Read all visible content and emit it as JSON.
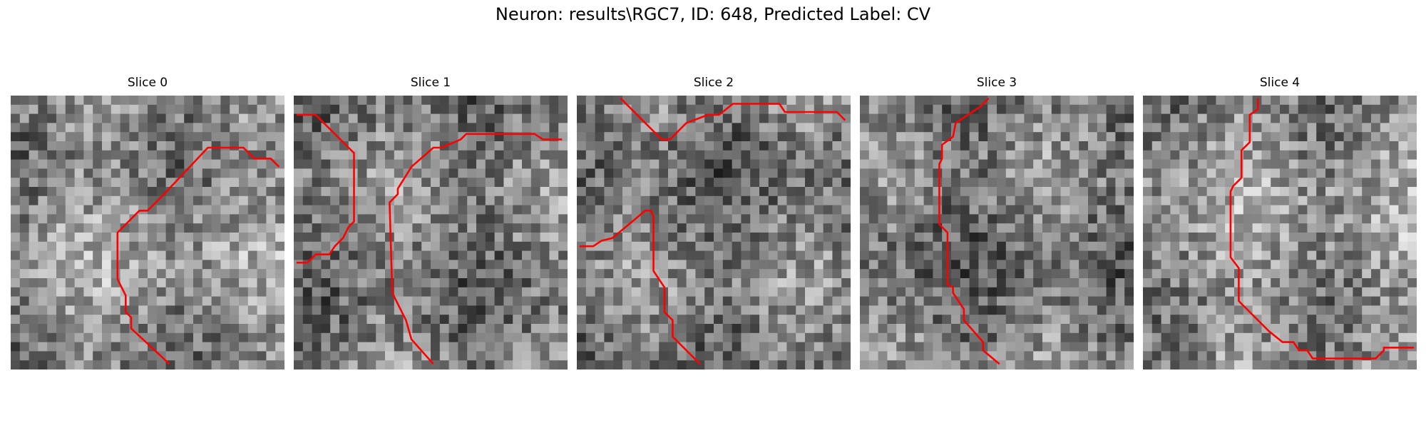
{
  "figure": {
    "title": "Neuron: results\\RGC7, ID: 648, Predicted Label: CV"
  },
  "colors": {
    "trace": "#ff0000",
    "background": "#ffffff"
  },
  "panels": [
    {
      "title": "Slice 0",
      "seed": 11,
      "mean": 140,
      "trace": [
        [
          0.58,
          0.98
        ],
        [
          0.44,
          0.85
        ],
        [
          0.44,
          0.81
        ],
        [
          0.42,
          0.79
        ],
        [
          0.42,
          0.73
        ],
        [
          0.39,
          0.67
        ],
        [
          0.39,
          0.5
        ],
        [
          0.47,
          0.42
        ],
        [
          0.5,
          0.42
        ],
        [
          0.56,
          0.36
        ],
        [
          0.72,
          0.19
        ],
        [
          0.85,
          0.19
        ],
        [
          0.89,
          0.23
        ],
        [
          0.95,
          0.23
        ],
        [
          0.98,
          0.26
        ]
      ]
    },
    {
      "title": "Slice 1",
      "seed": 23,
      "mean": 125,
      "trace": [
        [
          0.01,
          0.61
        ],
        [
          0.05,
          0.61
        ],
        [
          0.08,
          0.58
        ],
        [
          0.13,
          0.58
        ],
        [
          0.15,
          0.55
        ],
        [
          0.18,
          0.52
        ],
        [
          0.2,
          0.48
        ],
        [
          0.22,
          0.46
        ],
        [
          0.22,
          0.21
        ],
        [
          0.15,
          0.14
        ],
        [
          0.08,
          0.07
        ],
        [
          0.01,
          0.07
        ]
      ],
      "trace2": [
        [
          0.51,
          0.98
        ],
        [
          0.43,
          0.89
        ],
        [
          0.41,
          0.82
        ],
        [
          0.36,
          0.72
        ],
        [
          0.35,
          0.39
        ],
        [
          0.38,
          0.36
        ],
        [
          0.38,
          0.34
        ],
        [
          0.43,
          0.26
        ],
        [
          0.51,
          0.19
        ],
        [
          0.54,
          0.19
        ],
        [
          0.61,
          0.16
        ],
        [
          0.63,
          0.14
        ],
        [
          0.74,
          0.14
        ],
        [
          0.88,
          0.14
        ],
        [
          0.91,
          0.16
        ],
        [
          0.98,
          0.16
        ]
      ]
    },
    {
      "title": "Slice 2",
      "seed": 37,
      "mean": 120,
      "trace": [
        [
          0.16,
          0.01
        ],
        [
          0.25,
          0.1
        ],
        [
          0.31,
          0.16
        ],
        [
          0.34,
          0.16
        ],
        [
          0.4,
          0.1
        ],
        [
          0.48,
          0.07
        ],
        [
          0.52,
          0.07
        ],
        [
          0.57,
          0.03
        ],
        [
          0.74,
          0.03
        ],
        [
          0.76,
          0.06
        ],
        [
          0.95,
          0.06
        ],
        [
          0.98,
          0.09
        ]
      ],
      "trace2": [
        [
          0.01,
          0.55
        ],
        [
          0.06,
          0.55
        ],
        [
          0.09,
          0.53
        ],
        [
          0.13,
          0.52
        ],
        [
          0.19,
          0.47
        ],
        [
          0.25,
          0.42
        ],
        [
          0.27,
          0.42
        ],
        [
          0.28,
          0.44
        ],
        [
          0.28,
          0.64
        ],
        [
          0.32,
          0.7
        ],
        [
          0.32,
          0.79
        ],
        [
          0.35,
          0.82
        ],
        [
          0.35,
          0.88
        ],
        [
          0.45,
          0.98
        ]
      ]
    },
    {
      "title": "Slice 3",
      "seed": 51,
      "mean": 118,
      "trace": [
        [
          0.51,
          0.98
        ],
        [
          0.45,
          0.93
        ],
        [
          0.45,
          0.9
        ],
        [
          0.38,
          0.82
        ],
        [
          0.38,
          0.78
        ],
        [
          0.34,
          0.72
        ],
        [
          0.34,
          0.7
        ],
        [
          0.32,
          0.69
        ],
        [
          0.32,
          0.5
        ],
        [
          0.29,
          0.47
        ],
        [
          0.29,
          0.25
        ],
        [
          0.3,
          0.23
        ],
        [
          0.3,
          0.18
        ],
        [
          0.34,
          0.15
        ],
        [
          0.35,
          0.1
        ],
        [
          0.44,
          0.04
        ],
        [
          0.47,
          0.01
        ]
      ]
    },
    {
      "title": "Slice 4",
      "seed": 67,
      "mean": 145,
      "trace": [
        [
          0.42,
          0.01
        ],
        [
          0.42,
          0.05
        ],
        [
          0.39,
          0.07
        ],
        [
          0.39,
          0.17
        ],
        [
          0.36,
          0.2
        ],
        [
          0.36,
          0.3
        ],
        [
          0.33,
          0.33
        ],
        [
          0.32,
          0.35
        ],
        [
          0.32,
          0.59
        ],
        [
          0.35,
          0.63
        ],
        [
          0.35,
          0.75
        ],
        [
          0.46,
          0.86
        ],
        [
          0.51,
          0.9
        ],
        [
          0.55,
          0.9
        ],
        [
          0.57,
          0.93
        ],
        [
          0.6,
          0.93
        ],
        [
          0.62,
          0.96
        ],
        [
          0.85,
          0.96
        ],
        [
          0.88,
          0.93
        ],
        [
          0.88,
          0.92
        ],
        [
          0.99,
          0.92
        ]
      ]
    }
  ]
}
